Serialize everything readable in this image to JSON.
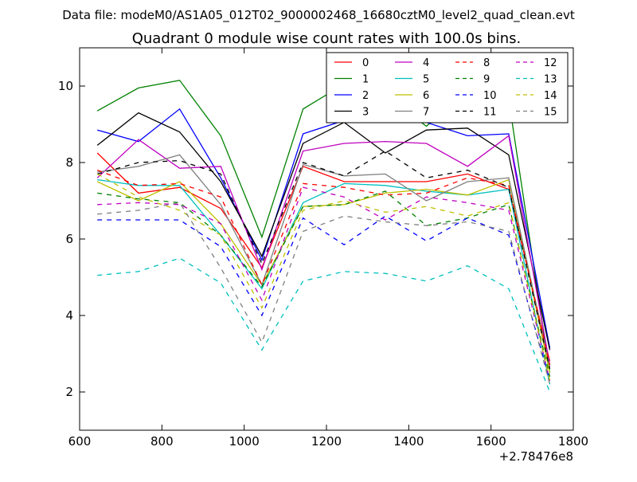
{
  "figure": {
    "suptitle": "Data file: modeM0/AS1A05_012T02_9000002468_16680cztM0_level2_quad_clean.evt"
  },
  "chart_data": {
    "type": "line",
    "title": "Quadrant 0 module wise count rates with 100.0s bins.",
    "xlabel": "",
    "ylabel": "",
    "x_offset_label": "+2.78476e8",
    "xlim": [
      600,
      1800
    ],
    "ylim": [
      1,
      11
    ],
    "x_ticks": [
      600,
      800,
      1000,
      1200,
      1400,
      1600,
      1800
    ],
    "y_ticks": [
      2,
      4,
      6,
      8,
      10
    ],
    "grid": false,
    "legend": {
      "position": "top-right",
      "columns": 4
    },
    "x": [
      643,
      743,
      843,
      943,
      1043,
      1143,
      1243,
      1343,
      1443,
      1543,
      1643,
      1743
    ],
    "series": [
      {
        "name": "0",
        "color": "#ff0000",
        "dash": "solid",
        "values": [
          8.25,
          7.2,
          7.35,
          6.8,
          5.25,
          7.9,
          7.5,
          7.5,
          7.5,
          7.7,
          7.3,
          2.8
        ]
      },
      {
        "name": "1",
        "color": "#008000",
        "dash": "solid",
        "values": [
          9.35,
          9.95,
          10.15,
          8.7,
          6.05,
          9.4,
          10.05,
          9.75,
          8.95,
          9.85,
          9.65,
          2.5
        ]
      },
      {
        "name": "2",
        "color": "#0000ff",
        "dash": "solid",
        "values": [
          8.85,
          8.55,
          9.4,
          7.6,
          5.45,
          8.75,
          9.1,
          9.15,
          9.05,
          8.7,
          8.75,
          3.15
        ]
      },
      {
        "name": "3",
        "color": "#000000",
        "dash": "solid",
        "values": [
          8.45,
          9.3,
          8.8,
          7.5,
          5.55,
          8.5,
          9.05,
          8.25,
          8.85,
          8.9,
          8.2,
          3.1
        ]
      },
      {
        "name": "4",
        "color": "#bf00bf",
        "dash": "solid",
        "values": [
          7.6,
          8.6,
          7.85,
          7.9,
          5.2,
          8.3,
          8.5,
          8.55,
          8.5,
          7.9,
          8.7,
          2.7
        ]
      },
      {
        "name": "5",
        "color": "#00bfbf",
        "dash": "solid",
        "values": [
          7.55,
          7.4,
          7.4,
          6.1,
          4.7,
          6.95,
          7.45,
          7.4,
          7.25,
          7.15,
          7.3,
          2.2
        ]
      },
      {
        "name": "6",
        "color": "#bfbf00",
        "dash": "solid",
        "values": [
          7.5,
          7.0,
          7.5,
          6.4,
          4.8,
          6.85,
          6.9,
          7.2,
          7.3,
          7.15,
          7.55,
          2.5
        ]
      },
      {
        "name": "7",
        "color": "#808080",
        "dash": "solid",
        "values": [
          7.75,
          7.9,
          8.2,
          6.9,
          4.8,
          7.95,
          7.65,
          7.7,
          7.0,
          7.5,
          7.6,
          2.65
        ]
      },
      {
        "name": "8",
        "color": "#ff0000",
        "dash": "dashed",
        "values": [
          7.8,
          7.4,
          7.45,
          7.1,
          4.8,
          7.45,
          7.35,
          7.15,
          7.2,
          7.6,
          7.4,
          2.7
        ]
      },
      {
        "name": "9",
        "color": "#008000",
        "dash": "dashed",
        "values": [
          7.2,
          7.05,
          6.95,
          6.1,
          4.75,
          6.85,
          6.9,
          7.25,
          6.35,
          6.55,
          6.9,
          2.4
        ]
      },
      {
        "name": "10",
        "color": "#0000ff",
        "dash": "dashed",
        "values": [
          6.5,
          6.5,
          6.5,
          5.8,
          4.0,
          6.55,
          5.85,
          6.6,
          5.95,
          6.55,
          6.1,
          2.3
        ]
      },
      {
        "name": "11",
        "color": "#000000",
        "dash": "dashed",
        "values": [
          7.7,
          8.0,
          8.05,
          7.7,
          5.35,
          8.0,
          7.65,
          8.3,
          7.6,
          7.8,
          7.35,
          2.6
        ]
      },
      {
        "name": "12",
        "color": "#bf00bf",
        "dash": "dashed",
        "values": [
          6.9,
          6.95,
          6.9,
          6.4,
          4.4,
          7.35,
          7.1,
          6.5,
          7.1,
          6.95,
          6.75,
          2.3
        ]
      },
      {
        "name": "13",
        "color": "#00bfbf",
        "dash": "dashed",
        "values": [
          5.05,
          5.15,
          5.5,
          4.85,
          3.1,
          4.9,
          5.15,
          5.1,
          4.9,
          5.3,
          4.7,
          2.0
        ]
      },
      {
        "name": "14",
        "color": "#bfbf00",
        "dash": "dashed",
        "values": [
          7.7,
          7.1,
          6.75,
          6.1,
          4.2,
          6.75,
          7.0,
          6.7,
          6.85,
          6.6,
          6.95,
          2.3
        ]
      },
      {
        "name": "15",
        "color": "#808080",
        "dash": "dashed",
        "values": [
          6.65,
          6.75,
          6.95,
          5.25,
          3.3,
          6.2,
          6.6,
          6.45,
          6.35,
          6.45,
          6.2,
          2.2
        ]
      }
    ]
  }
}
